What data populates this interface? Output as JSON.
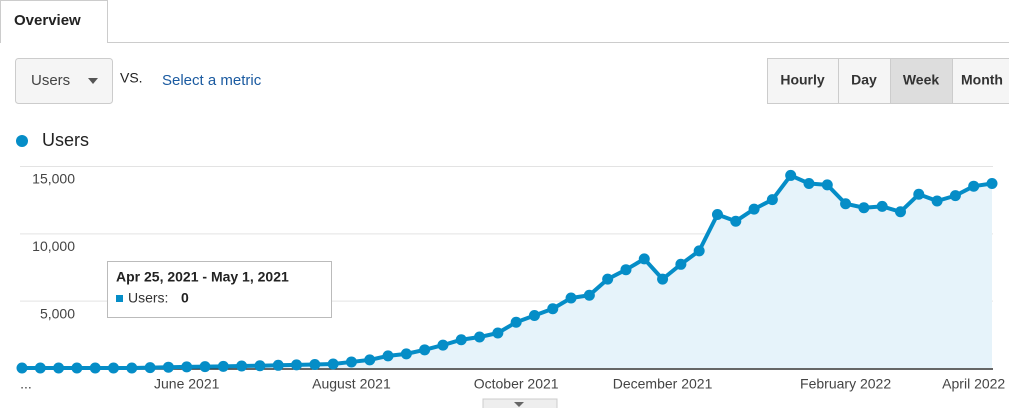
{
  "tab": "Overview",
  "metric_selector": "Users",
  "vs_label": "VS.",
  "compare_link": "Select a metric",
  "granularity": [
    "Hourly",
    "Day",
    "Week",
    "Month"
  ],
  "selected_granularity": "Week",
  "tooltip": {
    "date_range": "Apr 25, 2021 - May 1, 2021",
    "series": "Users:",
    "value": 0
  },
  "chart_data": {
    "type": "line",
    "categories": [
      "...",
      null,
      null,
      null,
      null,
      null,
      null,
      null,
      null,
      "June 2021",
      null,
      null,
      null,
      null,
      null,
      null,
      null,
      null,
      "August 2021",
      null,
      null,
      null,
      null,
      null,
      null,
      null,
      null,
      "October 2021",
      null,
      null,
      null,
      null,
      null,
      null,
      null,
      "December 2021",
      null,
      null,
      null,
      null,
      null,
      null,
      null,
      null,
      null,
      "February 2022",
      null,
      null,
      null,
      null,
      null,
      null,
      "April 2022",
      null
    ],
    "series": [
      {
        "name": "Users",
        "color": "#058dc7",
        "values": [
          0,
          0,
          0,
          0,
          0,
          0,
          0,
          30,
          60,
          80,
          100,
          120,
          150,
          170,
          200,
          230,
          260,
          300,
          450,
          600,
          900,
          1050,
          1350,
          1700,
          2100,
          2300,
          2600,
          3400,
          3900,
          4400,
          5200,
          5400,
          6600,
          7300,
          8100,
          6600,
          7700,
          8700,
          11400,
          10900,
          11800,
          12500,
          14300,
          13700,
          13600,
          12200,
          11900,
          12000,
          11600,
          12900,
          12400,
          12800,
          13500,
          13700
        ]
      }
    ],
    "ylim": [
      0,
      15000
    ],
    "yticks": [
      {
        "value": 5000,
        "label": "5,000"
      },
      {
        "value": 10000,
        "label": "10,000"
      },
      {
        "value": 15000,
        "label": "15,000"
      }
    ],
    "grid": true,
    "area_fill": "#e6f3fa"
  }
}
